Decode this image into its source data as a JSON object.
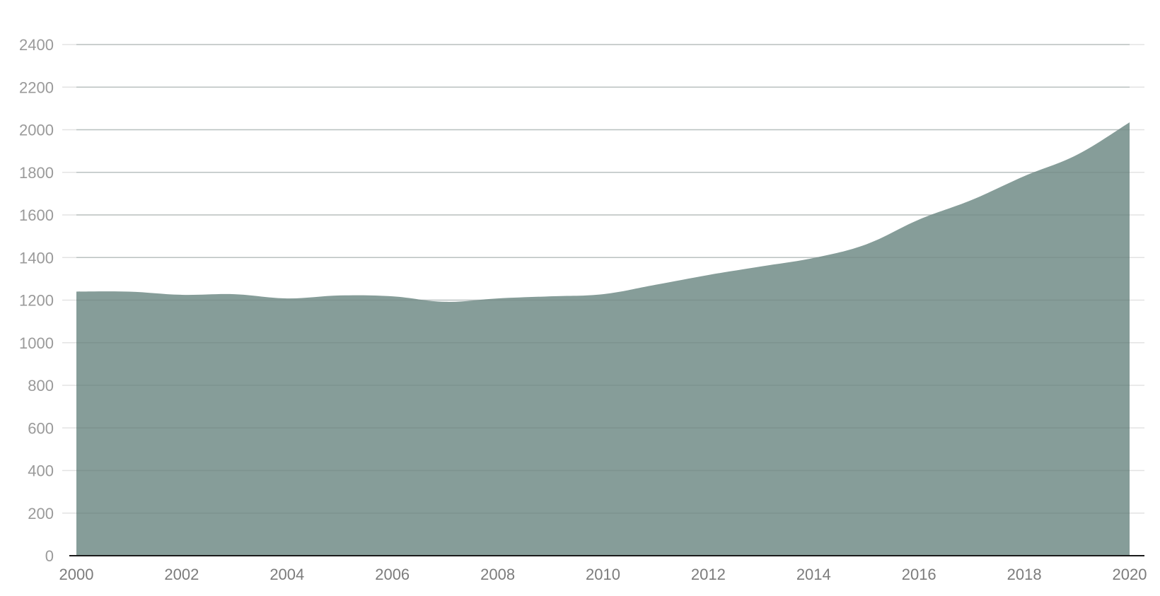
{
  "chart_data": {
    "type": "area",
    "title": "",
    "xlabel": "",
    "ylabel": "",
    "x": [
      2000,
      2001,
      2002,
      2003,
      2004,
      2005,
      2006,
      2007,
      2008,
      2009,
      2010,
      2011,
      2012,
      2013,
      2014,
      2015,
      2016,
      2017,
      2018,
      2019,
      2020
    ],
    "series": [
      {
        "values": [
          1240,
          1240,
          1225,
          1228,
          1208,
          1222,
          1218,
          1192,
          1208,
          1218,
          1228,
          1272,
          1318,
          1358,
          1398,
          1462,
          1578,
          1670,
          1782,
          1882,
          2035
        ],
        "color": "#869d99"
      }
    ],
    "xlim": [
      2000,
      2020
    ],
    "ylim": [
      0,
      2400
    ],
    "x_ticks": [
      "2000",
      "2002",
      "2004",
      "2006",
      "2008",
      "2010",
      "2012",
      "2014",
      "2016",
      "2018",
      "2020"
    ],
    "y_ticks": [
      "0",
      "200",
      "400",
      "600",
      "800",
      "1000",
      "1200",
      "1400",
      "1600",
      "1800",
      "2000",
      "2200",
      "2400"
    ],
    "grid": true,
    "legend": "none",
    "colors": {
      "area": "#869d99",
      "grid": "#e3e3e3",
      "baseline": "#1a1a1a",
      "tick_label": "#9a9a9a"
    }
  }
}
